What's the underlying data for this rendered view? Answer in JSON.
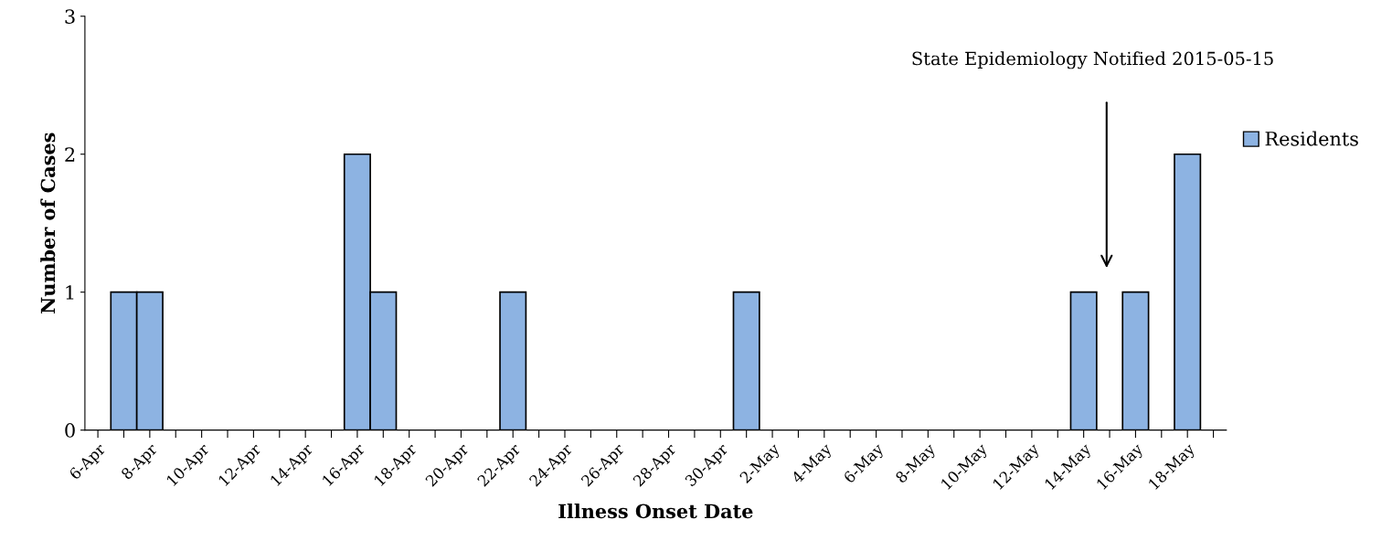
{
  "chart_data": {
    "type": "bar",
    "xlabel": "Illness Onset Date",
    "ylabel": "Number of Cases",
    "categories": [
      "6-Apr",
      null,
      "8-Apr",
      null,
      "10-Apr",
      null,
      "12-Apr",
      null,
      "14-Apr",
      null,
      "16-Apr",
      null,
      "18-Apr",
      null,
      "20-Apr",
      null,
      "22-Apr",
      null,
      "24-Apr",
      null,
      "26-Apr",
      null,
      "28-Apr",
      null,
      "30-Apr",
      null,
      "2-May",
      null,
      "4-May",
      null,
      "6-May",
      null,
      "8-May",
      null,
      "10-May",
      null,
      "12-May",
      null,
      "14-May",
      null,
      "16-May",
      null,
      "18-May",
      null
    ],
    "series": [
      {
        "name": "Residents",
        "color": "#8db3e2",
        "values": [
          0,
          1,
          1,
          0,
          0,
          0,
          0,
          0,
          0,
          0,
          2,
          1,
          0,
          0,
          0,
          0,
          1,
          0,
          0,
          0,
          0,
          0,
          0,
          0,
          0,
          1,
          0,
          0,
          0,
          0,
          0,
          0,
          0,
          0,
          0,
          0,
          0,
          0,
          1,
          0,
          1,
          0,
          2,
          0
        ]
      }
    ],
    "ylim": [
      0,
      3
    ],
    "yticks": [
      0,
      1,
      2,
      3
    ],
    "grid": false,
    "legend": "right",
    "annotations": [
      "State Epidemiology Notified 2015-05-15"
    ]
  }
}
